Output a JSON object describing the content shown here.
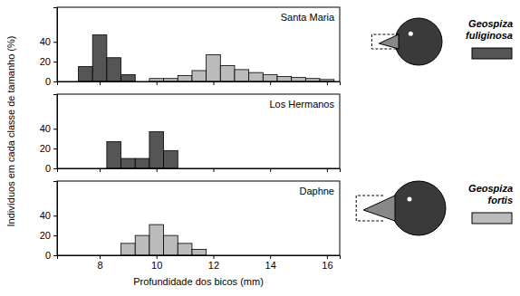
{
  "chart_data": [
    {
      "type": "histogram",
      "title": "Santa Maria",
      "series": [
        {
          "name": "Geospiza fuliginosa",
          "color": "#555555",
          "bins": [
            7.25,
            7.75,
            8.25,
            8.75,
            9.25
          ],
          "values": [
            15,
            47,
            24,
            7
          ]
        },
        {
          "name": "Geospiza fortis",
          "color": "#bbbbbb",
          "bins": [
            9.75,
            10.25,
            10.75,
            11.25,
            11.75,
            12.25,
            12.75,
            13.25,
            13.75,
            14.25,
            14.75,
            15.25,
            15.75,
            16.25
          ],
          "values": [
            3,
            3,
            6,
            11,
            27,
            16,
            12,
            9,
            7,
            5,
            4,
            3,
            2
          ]
        }
      ],
      "legend": "right",
      "xlim": [
        6.5,
        16.45
      ],
      "xticks": [
        8,
        10,
        12,
        14,
        16
      ],
      "ylim": [
        0,
        75
      ],
      "yticks": [
        0,
        20,
        40
      ],
      "tick_labels": "y"
    },
    {
      "type": "histogram",
      "title": "Los Hermanos",
      "y_label": "Indivíduos em cada classe de tamanho (%)",
      "series": [
        {
          "color": "#555555",
          "bins": [
            8.25,
            8.75,
            9.25,
            9.75,
            10.25,
            10.75
          ],
          "values": [
            27,
            10,
            10,
            37,
            18
          ]
        }
      ],
      "xlim": [
        6.5,
        16.45
      ],
      "xticks": [
        8,
        10,
        12,
        14,
        16
      ],
      "ylim": [
        0,
        75
      ],
      "yticks": [
        0,
        20,
        40
      ],
      "tick_labels": "y"
    },
    {
      "type": "histogram",
      "title": "Daphne",
      "x_label": "Profundidade dos bicos (mm)",
      "series": [
        {
          "color": "#bbbbbb",
          "bins": [
            8.75,
            9.25,
            9.75,
            10.25,
            10.75,
            11.25,
            11.75
          ],
          "values": [
            12,
            20,
            31,
            20,
            12,
            6
          ]
        }
      ],
      "xlim": [
        6.5,
        16.45
      ],
      "xticks": [
        8,
        10,
        12,
        14,
        16
      ],
      "ylim": [
        0,
        75
      ],
      "yticks": [
        0,
        20,
        40
      ]
    }
  ]
}
